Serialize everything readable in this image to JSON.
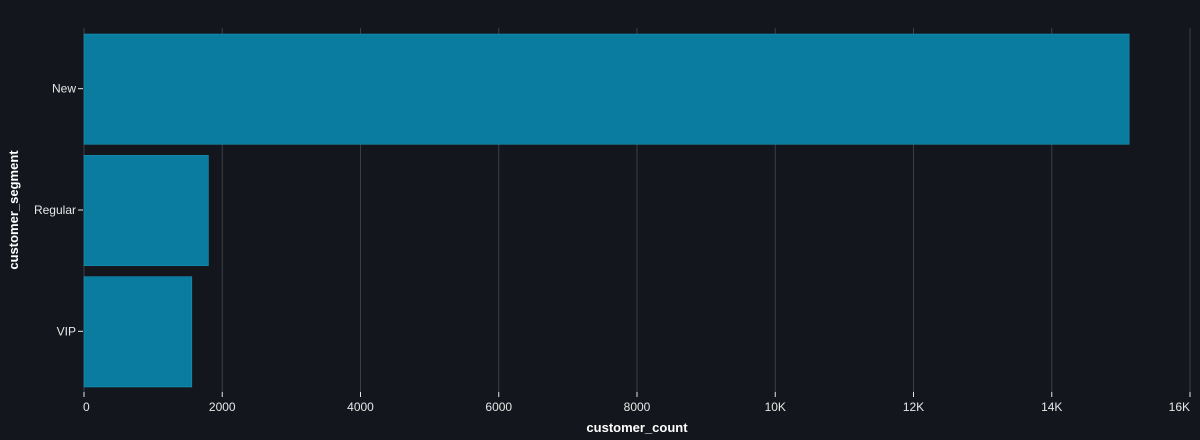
{
  "chart_data": {
    "type": "bar",
    "orientation": "horizontal",
    "categories": [
      "New",
      "Regular",
      "VIP"
    ],
    "values": [
      15120,
      1800,
      1560
    ],
    "xlabel": "customer_count",
    "ylabel": "customer_segment",
    "xlim": [
      0,
      16000
    ],
    "x_ticks": [
      0,
      2000,
      4000,
      6000,
      8000,
      10000,
      12000,
      14000,
      16000
    ],
    "x_tick_labels": [
      "0",
      "2000",
      "4000",
      "6000",
      "8000",
      "10K",
      "12K",
      "14K",
      "16K"
    ],
    "grid": "vertical",
    "legend": "none",
    "colors": {
      "background": "#13171d",
      "bar": "#0a7ca0",
      "bar_stroke": "#1a9bc2",
      "grid": "#3a3f46",
      "tick": "#e6e6e6",
      "title": "#ffffff"
    }
  }
}
